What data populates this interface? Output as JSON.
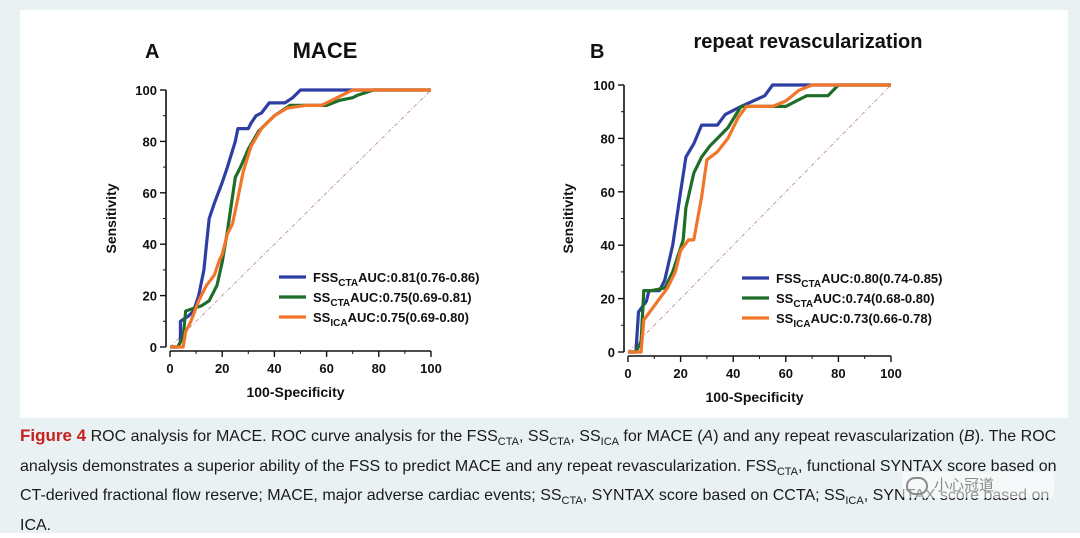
{
  "chart_data": [
    {
      "type": "line",
      "panel_letter": "A",
      "title": "MACE",
      "xlabel": "100-Specificity",
      "ylabel": "Sensitivity",
      "xlim": [
        0,
        100
      ],
      "ylim": [
        0,
        100
      ],
      "xticks": [
        0,
        20,
        40,
        60,
        80,
        100
      ],
      "yticks": [
        0,
        20,
        40,
        60,
        80,
        100
      ],
      "legend_position": "bottom-right",
      "series": [
        {
          "name": "FSS",
          "subscript": "CTA",
          "auc_text": "AUC:0.81(0.76-0.86)",
          "color": "#2e3ea4",
          "points": [
            [
              0,
              0
            ],
            [
              3,
              0
            ],
            [
              4,
              2
            ],
            [
              4,
              10
            ],
            [
              7,
              12
            ],
            [
              9,
              14
            ],
            [
              11,
              20
            ],
            [
              13,
              30
            ],
            [
              14,
              40
            ],
            [
              15,
              50
            ],
            [
              17,
              56
            ],
            [
              20,
              64
            ],
            [
              22,
              70
            ],
            [
              25,
              80
            ],
            [
              26,
              85
            ],
            [
              30,
              85
            ],
            [
              31,
              87
            ],
            [
              33,
              90
            ],
            [
              35,
              91
            ],
            [
              38,
              95
            ],
            [
              44,
              95
            ],
            [
              47,
              97
            ],
            [
              50,
              100
            ],
            [
              100,
              100
            ]
          ]
        },
        {
          "name": "SS",
          "subscript": "CTA",
          "auc_text": "AUC:0.75(0.69-0.81)",
          "color": "#1e6e2a",
          "points": [
            [
              0,
              0
            ],
            [
              3,
              0
            ],
            [
              5,
              4
            ],
            [
              6,
              14
            ],
            [
              9,
              15
            ],
            [
              12,
              16
            ],
            [
              15,
              18
            ],
            [
              18,
              24
            ],
            [
              20,
              33
            ],
            [
              22,
              45
            ],
            [
              25,
              66
            ],
            [
              27,
              70
            ],
            [
              30,
              77
            ],
            [
              34,
              84
            ],
            [
              40,
              90
            ],
            [
              46,
              94
            ],
            [
              52,
              94
            ],
            [
              60,
              94
            ],
            [
              65,
              96
            ],
            [
              70,
              97
            ],
            [
              72,
              98
            ],
            [
              78,
              100
            ],
            [
              100,
              100
            ]
          ]
        },
        {
          "name": "SS",
          "subscript": "ICA",
          "auc_text": "AUC:0.75(0.69-0.80)",
          "color": "#f2762a",
          "points": [
            [
              0,
              0
            ],
            [
              5,
              0
            ],
            [
              6,
              6
            ],
            [
              8,
              10
            ],
            [
              11,
              18
            ],
            [
              14,
              24
            ],
            [
              17,
              28
            ],
            [
              19,
              34
            ],
            [
              20,
              36
            ],
            [
              22,
              44
            ],
            [
              24,
              48
            ],
            [
              26,
              58
            ],
            [
              28,
              68
            ],
            [
              31,
              78
            ],
            [
              35,
              85
            ],
            [
              40,
              90
            ],
            [
              45,
              93
            ],
            [
              52,
              94
            ],
            [
              58,
              94
            ],
            [
              62,
              96
            ],
            [
              66,
              98
            ],
            [
              70,
              100
            ],
            [
              100,
              100
            ]
          ]
        }
      ]
    },
    {
      "type": "line",
      "panel_letter": "B",
      "title": "repeat revascularization",
      "xlabel": "100-Specificity",
      "ylabel": "Sensitivity",
      "xlim": [
        0,
        100
      ],
      "ylim": [
        0,
        100
      ],
      "xticks": [
        0,
        20,
        40,
        60,
        80,
        100
      ],
      "yticks": [
        0,
        20,
        40,
        60,
        80,
        100
      ],
      "legend_position": "bottom-right",
      "series": [
        {
          "name": "FSS",
          "subscript": "CTA",
          "auc_text": "AUC:0.80(0.74-0.85)",
          "color": "#2e3ea4",
          "points": [
            [
              0,
              0
            ],
            [
              3,
              0
            ],
            [
              4,
              15
            ],
            [
              7,
              19
            ],
            [
              8,
              23
            ],
            [
              12,
              23
            ],
            [
              14,
              27
            ],
            [
              17,
              40
            ],
            [
              20,
              60
            ],
            [
              22,
              73
            ],
            [
              25,
              78
            ],
            [
              28,
              85
            ],
            [
              34,
              85
            ],
            [
              37,
              89
            ],
            [
              43,
              92
            ],
            [
              52,
              96
            ],
            [
              55,
              100
            ],
            [
              68,
              100
            ],
            [
              100,
              100
            ]
          ]
        },
        {
          "name": "SS",
          "subscript": "CTA",
          "auc_text": "AUC:0.74(0.68-0.80)",
          "color": "#1e6e2a",
          "points": [
            [
              0,
              0
            ],
            [
              3,
              0
            ],
            [
              5,
              4
            ],
            [
              6,
              23
            ],
            [
              9,
              23
            ],
            [
              14,
              24
            ],
            [
              17,
              30
            ],
            [
              19,
              36
            ],
            [
              21,
              42
            ],
            [
              22,
              54
            ],
            [
              25,
              67
            ],
            [
              28,
              73
            ],
            [
              31,
              77
            ],
            [
              38,
              84
            ],
            [
              43,
              92
            ],
            [
              50,
              92
            ],
            [
              60,
              92
            ],
            [
              64,
              94
            ],
            [
              68,
              96
            ],
            [
              76,
              96
            ],
            [
              80,
              100
            ],
            [
              100,
              100
            ]
          ]
        },
        {
          "name": "SS",
          "subscript": "ICA",
          "auc_text": "AUC:0.73(0.66-0.78)",
          "color": "#f2762a",
          "points": [
            [
              0,
              0
            ],
            [
              5,
              0
            ],
            [
              6,
              12
            ],
            [
              9,
              16
            ],
            [
              12,
              20
            ],
            [
              15,
              24
            ],
            [
              18,
              30
            ],
            [
              20,
              38
            ],
            [
              23,
              42
            ],
            [
              25,
              42
            ],
            [
              28,
              58
            ],
            [
              30,
              72
            ],
            [
              34,
              75
            ],
            [
              38,
              80
            ],
            [
              42,
              88
            ],
            [
              45,
              92
            ],
            [
              55,
              92
            ],
            [
              60,
              94
            ],
            [
              65,
              98
            ],
            [
              70,
              100
            ],
            [
              100,
              100
            ]
          ]
        }
      ]
    }
  ],
  "caption": {
    "figure_label": "Figure 4",
    "segments": [
      {
        "text": " ROC analysis for MACE. ROC curve analysis for the FSS"
      },
      {
        "text": "CTA",
        "sub": true
      },
      {
        "text": ", SS"
      },
      {
        "text": "CTA",
        "sub": true
      },
      {
        "text": ", SS"
      },
      {
        "text": "ICA",
        "sub": true
      },
      {
        "text": " for MACE ("
      },
      {
        "text": "A",
        "italic": true
      },
      {
        "text": ") and any repeat revascularization ("
      },
      {
        "text": "B",
        "italic": true
      },
      {
        "text": "). The ROC analysis demonstrates a superior ability of the FSS to predict MACE and any repeat revascularization. FSS"
      },
      {
        "text": "CTA",
        "sub": true
      },
      {
        "text": ", functional SYNTAX score based on CT-derived fractional flow reserve; MACE, major adverse cardiac events; SS"
      },
      {
        "text": "CTA",
        "sub": true
      },
      {
        "text": ", SYNTAX score based on CCTA; SS"
      },
      {
        "text": "ICA",
        "sub": true
      },
      {
        "text": ", SYNTAX score based on ICA."
      }
    ]
  },
  "watermark": {
    "text": "小心冠道"
  }
}
